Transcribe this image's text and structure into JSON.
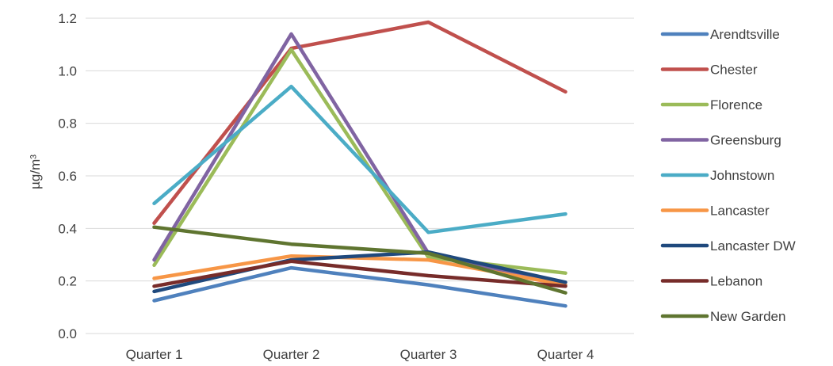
{
  "chart_data": {
    "type": "line",
    "title": "",
    "xlabel": "",
    "ylabel": "µg/m³",
    "ylim": [
      0,
      1.2
    ],
    "y_ticks": [
      "0.0",
      "0.2",
      "0.4",
      "0.6",
      "0.8",
      "1.0",
      "1.2"
    ],
    "categories": [
      "Quarter 1",
      "Quarter 2",
      "Quarter 3",
      "Quarter 4"
    ],
    "grid": "horizontal",
    "legend_position": "right",
    "series": [
      {
        "name": "Arendtsville",
        "color": "#4F81BD",
        "values": [
          0.125,
          0.25,
          0.185,
          0.105
        ]
      },
      {
        "name": "Chester",
        "color": "#C0504D",
        "values": [
          0.42,
          1.085,
          1.185,
          0.92
        ]
      },
      {
        "name": "Florence",
        "color": "#9BBB59",
        "values": [
          0.26,
          1.08,
          0.29,
          0.23
        ]
      },
      {
        "name": "Greensburg",
        "color": "#8064A2",
        "values": [
          0.28,
          1.14,
          0.305,
          0.185
        ]
      },
      {
        "name": "Johnstown",
        "color": "#4BACC6",
        "values": [
          0.495,
          0.94,
          0.385,
          0.455
        ]
      },
      {
        "name": "Lancaster",
        "color": "#F79646",
        "values": [
          0.21,
          0.295,
          0.28,
          0.185
        ]
      },
      {
        "name": "Lancaster DW",
        "color": "#1F497D",
        "values": [
          0.16,
          0.28,
          0.31,
          0.195
        ]
      },
      {
        "name": "Lebanon",
        "color": "#772C2A",
        "values": [
          0.18,
          0.275,
          0.22,
          0.18
        ]
      },
      {
        "name": "New Garden",
        "color": "#5F7530",
        "values": [
          0.405,
          0.34,
          0.305,
          0.155
        ]
      }
    ]
  }
}
